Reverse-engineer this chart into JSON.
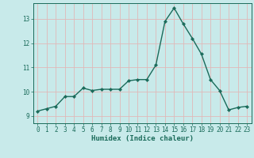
{
  "x": [
    0,
    1,
    2,
    3,
    4,
    5,
    6,
    7,
    8,
    9,
    10,
    11,
    12,
    13,
    14,
    15,
    16,
    17,
    18,
    19,
    20,
    21,
    22,
    23
  ],
  "y": [
    9.2,
    9.3,
    9.4,
    9.8,
    9.8,
    10.15,
    10.05,
    10.1,
    10.1,
    10.1,
    10.45,
    10.5,
    10.5,
    11.1,
    12.9,
    13.45,
    12.8,
    12.2,
    11.55,
    10.5,
    10.05,
    9.25,
    9.35,
    9.4
  ],
  "line_color": "#1a6b5a",
  "marker": "D",
  "marker_size": 2.2,
  "bg_color": "#c8eaea",
  "grid_color": "#e0b8b8",
  "axis_color": "#1a6b5a",
  "xlabel": "Humidex (Indice chaleur)",
  "xlim": [
    -0.5,
    23.5
  ],
  "ylim": [
    8.7,
    13.65
  ],
  "yticks": [
    9,
    10,
    11,
    12,
    13
  ],
  "xticks": [
    0,
    1,
    2,
    3,
    4,
    5,
    6,
    7,
    8,
    9,
    10,
    11,
    12,
    13,
    14,
    15,
    16,
    17,
    18,
    19,
    20,
    21,
    22,
    23
  ],
  "fontsize_tick": 5.5,
  "fontsize_label": 6.5
}
